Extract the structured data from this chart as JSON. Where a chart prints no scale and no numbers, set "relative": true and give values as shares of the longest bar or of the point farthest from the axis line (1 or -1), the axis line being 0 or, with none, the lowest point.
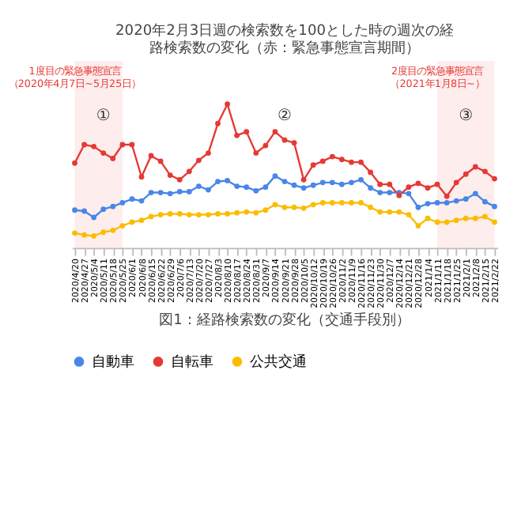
{
  "chart_data": {
    "type": "line",
    "relative": true,
    "title": "2020年2月3日週の検索数を100とした時の週次の経路検索数の変化（赤：緊急事態宣言期間）",
    "categories": [
      "2020/4/20",
      "2020/4/27",
      "2020/5/4",
      "2020/5/11",
      "2020/5/18",
      "2020/5/25",
      "2020/6/1",
      "2020/6/8",
      "2020/6/15",
      "2020/6/22",
      "2020/6/29",
      "2020/7/6",
      "2020/7/13",
      "2020/7/20",
      "2020/7/27",
      "2020/8/3",
      "2020/8/10",
      "2020/8/17",
      "2020/8/24",
      "2020/8/31",
      "2020/9/7",
      "2020/9/14",
      "2020/9/21",
      "2020/9/28",
      "2020/10/5",
      "2020/10/12",
      "2020/10/19",
      "2020/10/26",
      "2020/11/2",
      "2020/11/9",
      "2020/11/16",
      "2020/11/23",
      "2020/11/30",
      "2020/12/7",
      "2020/12/14",
      "2020/12/21",
      "2020/12/28",
      "2021/1/4",
      "2021/1/11",
      "2021/1/18",
      "2021/1/25",
      "2021/2/1",
      "2021/2/8",
      "2021/2/15",
      "2021/2/22"
    ],
    "series": [
      {
        "name": "自動車",
        "color": "#4a86e8",
        "values": [
          0.263,
          0.256,
          0.212,
          0.269,
          0.288,
          0.314,
          0.34,
          0.327,
          0.385,
          0.385,
          0.378,
          0.391,
          0.391,
          0.429,
          0.404,
          0.462,
          0.468,
          0.429,
          0.423,
          0.397,
          0.423,
          0.5,
          0.462,
          0.436,
          0.417,
          0.436,
          0.455,
          0.455,
          0.442,
          0.455,
          0.474,
          0.417,
          0.385,
          0.385,
          0.385,
          0.378,
          0.282,
          0.308,
          0.314,
          0.314,
          0.327,
          0.34,
          0.378,
          0.321,
          0.288
        ]
      },
      {
        "name": "自転車",
        "color": "#e53935",
        "values": [
          0.59,
          0.718,
          0.705,
          0.66,
          0.622,
          0.718,
          0.718,
          0.494,
          0.641,
          0.603,
          0.506,
          0.474,
          0.532,
          0.609,
          0.66,
          0.865,
          1.0,
          0.782,
          0.808,
          0.66,
          0.712,
          0.808,
          0.75,
          0.731,
          0.474,
          0.577,
          0.603,
          0.635,
          0.615,
          0.596,
          0.596,
          0.526,
          0.442,
          0.442,
          0.365,
          0.423,
          0.449,
          0.417,
          0.442,
          0.359,
          0.455,
          0.513,
          0.564,
          0.532,
          0.481
        ]
      },
      {
        "name": "公共交通",
        "color": "#fbbc04",
        "values": [
          0.103,
          0.09,
          0.083,
          0.109,
          0.122,
          0.154,
          0.179,
          0.192,
          0.218,
          0.231,
          0.237,
          0.237,
          0.231,
          0.231,
          0.231,
          0.237,
          0.237,
          0.244,
          0.25,
          0.244,
          0.263,
          0.301,
          0.282,
          0.282,
          0.276,
          0.301,
          0.314,
          0.314,
          0.314,
          0.314,
          0.314,
          0.282,
          0.25,
          0.25,
          0.25,
          0.231,
          0.154,
          0.205,
          0.179,
          0.179,
          0.192,
          0.205,
          0.205,
          0.218,
          0.179
        ]
      }
    ],
    "bands": [
      {
        "axis": "x",
        "from": "2020/4/20",
        "to": "2020/5/25",
        "label": "1度目の緊急事態宣言（2020年4月7日~5月25日）",
        "color": "#fce8e8"
      },
      {
        "axis": "x",
        "from": "2021/1/11",
        "to": "2021/2/22",
        "label": "2度目の緊急事態宣言（2021年1月8日~）",
        "color": "#fce8e8"
      }
    ],
    "annotations": [
      "①",
      "②",
      "③",
      "図1：経路検索数の変化（交通手段別）"
    ],
    "marker": "circle",
    "line_style": "solid",
    "legend": "bottom"
  }
}
